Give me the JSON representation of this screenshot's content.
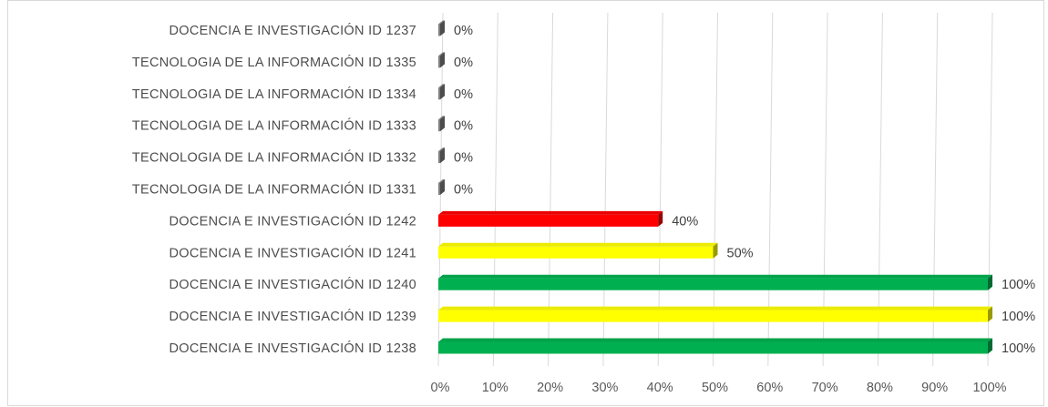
{
  "chart_data": {
    "type": "bar",
    "orientation": "horizontal",
    "style": "3d-bar",
    "categories": [
      "DOCENCIA E INVESTIGACIÓN ID 1237",
      "TECNOLOGIA DE LA INFORMACIÓN ID 1335",
      "TECNOLOGIA DE LA INFORMACIÓN ID 1334",
      "TECNOLOGIA DE LA INFORMACIÓN ID 1333",
      "TECNOLOGIA DE LA INFORMACIÓN ID 1332",
      "TECNOLOGIA DE LA INFORMACIÓN ID 1331",
      "DOCENCIA E INVESTIGACIÓN ID 1242",
      "DOCENCIA E INVESTIGACIÓN ID 1241",
      "DOCENCIA E INVESTIGACIÓN ID 1240",
      "DOCENCIA E INVESTIGACIÓN ID 1239",
      "DOCENCIA E INVESTIGACIÓN ID 1238"
    ],
    "values": [
      0,
      0,
      0,
      0,
      0,
      0,
      40,
      50,
      100,
      100,
      100
    ],
    "data_labels": [
      "0%",
      "0%",
      "0%",
      "0%",
      "0%",
      "0%",
      "40%",
      "50%",
      "100%",
      "100%",
      "100%"
    ],
    "bar_colors": [
      "#7f7f7f",
      "#7f7f7f",
      "#7f7f7f",
      "#7f7f7f",
      "#7f7f7f",
      "#7f7f7f",
      "#ff0000",
      "#ffff00",
      "#00b050",
      "#ffff00",
      "#00b050"
    ],
    "xlim": [
      0,
      100
    ],
    "x_ticks": [
      "0%",
      "10%",
      "20%",
      "30%",
      "40%",
      "50%",
      "60%",
      "70%",
      "80%",
      "90%",
      "100%"
    ],
    "title": "",
    "xlabel": "",
    "ylabel": "",
    "grid": true,
    "legend": "none"
  }
}
